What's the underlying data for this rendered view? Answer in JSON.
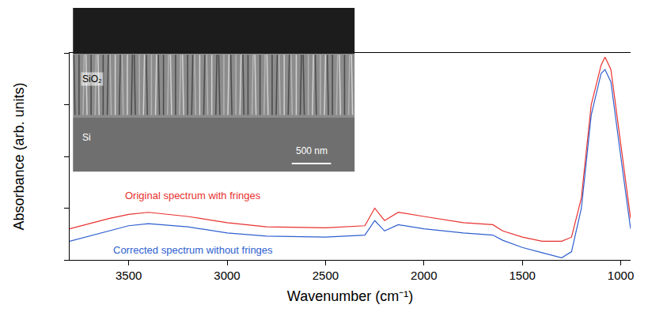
{
  "chart_data": {
    "type": "line",
    "x_label": "Wavenumber (cm⁻¹)",
    "y_label": "Absorbance (arb. units)",
    "x": [
      3800,
      3600,
      3500,
      3400,
      3200,
      3000,
      2800,
      2500,
      2300,
      2250,
      2200,
      2130,
      2000,
      1800,
      1650,
      1600,
      1500,
      1400,
      1300,
      1250,
      1200,
      1150,
      1100,
      1080,
      1050,
      1000,
      950
    ],
    "series": [
      {
        "name": "Original spectrum with fringes",
        "color": "#e8312f",
        "values": [
          0.15,
          0.2,
          0.22,
          0.23,
          0.21,
          0.18,
          0.16,
          0.155,
          0.165,
          0.25,
          0.19,
          0.23,
          0.21,
          0.18,
          0.17,
          0.14,
          0.11,
          0.09,
          0.09,
          0.11,
          0.3,
          0.75,
          0.94,
          0.98,
          0.92,
          0.55,
          0.2
        ]
      },
      {
        "name": "Corrected spectrum without fringes",
        "color": "#2f5fcf",
        "values": [
          0.09,
          0.14,
          0.165,
          0.175,
          0.16,
          0.13,
          0.115,
          0.11,
          0.12,
          0.19,
          0.14,
          0.17,
          0.15,
          0.13,
          0.12,
          0.095,
          0.06,
          0.035,
          0.01,
          0.04,
          0.25,
          0.7,
          0.9,
          0.92,
          0.86,
          0.5,
          0.15
        ]
      }
    ],
    "xlim": [
      3800,
      950
    ],
    "xticks": [
      3500,
      3000,
      2500,
      2000,
      1500,
      1000
    ],
    "ylim": [
      0,
      1
    ],
    "yticks": [
      0,
      0.25,
      0.5,
      0.75,
      1
    ],
    "tick_labels": "x",
    "grid": false,
    "annotations": [
      "SiO₂",
      "Si",
      "500 nm"
    ]
  }
}
